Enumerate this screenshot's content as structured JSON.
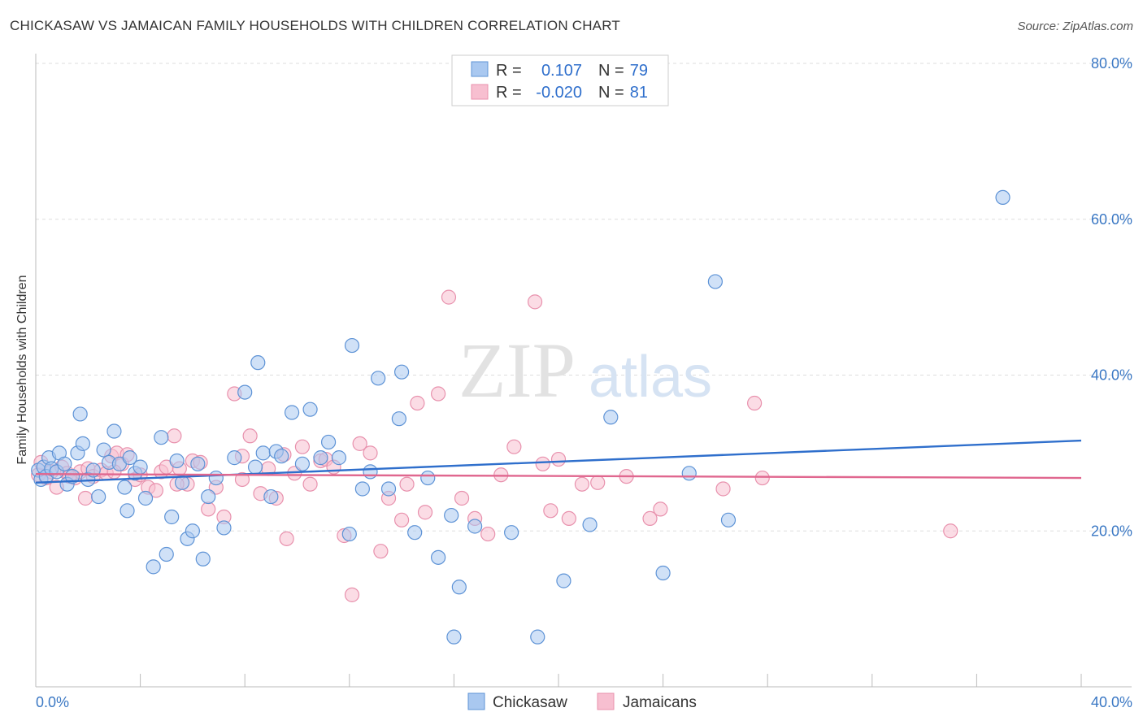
{
  "title": "CHICKASAW VS JAMAICAN FAMILY HOUSEHOLDS WITH CHILDREN CORRELATION CHART",
  "source": "Source: ZipAtlas.com",
  "watermark": {
    "zip": "ZIP",
    "atlas": "atlas"
  },
  "colors": {
    "blue_fill": "#a9c8f0",
    "blue_stroke": "#5e93d6",
    "blue_line": "#2f6fcc",
    "pink_fill": "#f7bfd0",
    "pink_stroke": "#e891ad",
    "pink_line": "#e0678f",
    "tick_text": "#3b78c4",
    "grid": "#dddddd"
  },
  "legend": {
    "r_label": "R =",
    "n_label": "N =",
    "rows": [
      {
        "series": "Chickasaw",
        "r": "0.107",
        "n": "79"
      },
      {
        "series": "Jamaicans",
        "r": "-0.020",
        "n": "81"
      }
    ]
  },
  "chart_data": {
    "type": "scatter",
    "title": "CHICKASAW VS JAMAICAN FAMILY HOUSEHOLDS WITH CHILDREN CORRELATION CHART",
    "xlabel": "",
    "ylabel": "Family Households with Children",
    "xlim": [
      0,
      40
    ],
    "ylim": [
      0,
      80
    ],
    "x_tick_labels": [
      "0.0%",
      "40.0%"
    ],
    "y_ticks": [
      20,
      40,
      60,
      80
    ],
    "y_tick_labels": [
      "20.0%",
      "40.0%",
      "60.0%",
      "80.0%"
    ],
    "grid": true,
    "series": [
      {
        "name": "Chickasaw",
        "r": 0.107,
        "n": 79,
        "trend": {
          "x": [
            0,
            40
          ],
          "y": [
            26.2,
            31.6
          ]
        },
        "points": [
          [
            0.1,
            27.8
          ],
          [
            0.2,
            26.6
          ],
          [
            0.3,
            28.2
          ],
          [
            0.4,
            27.0
          ],
          [
            0.5,
            29.4
          ],
          [
            0.6,
            28.0
          ],
          [
            0.8,
            27.6
          ],
          [
            0.9,
            30.0
          ],
          [
            1.1,
            28.6
          ],
          [
            1.2,
            26.0
          ],
          [
            1.4,
            27.0
          ],
          [
            1.6,
            30.0
          ],
          [
            1.7,
            35.0
          ],
          [
            1.8,
            31.2
          ],
          [
            2.0,
            26.6
          ],
          [
            2.2,
            27.8
          ],
          [
            2.4,
            24.4
          ],
          [
            2.6,
            30.4
          ],
          [
            2.8,
            28.8
          ],
          [
            3.0,
            32.8
          ],
          [
            3.2,
            28.6
          ],
          [
            3.4,
            25.6
          ],
          [
            3.5,
            22.6
          ],
          [
            3.6,
            29.4
          ],
          [
            3.8,
            27.4
          ],
          [
            4.0,
            28.2
          ],
          [
            4.2,
            24.2
          ],
          [
            4.5,
            15.4
          ],
          [
            4.8,
            32.0
          ],
          [
            5.0,
            17.0
          ],
          [
            5.2,
            21.8
          ],
          [
            5.4,
            29.0
          ],
          [
            5.6,
            26.2
          ],
          [
            5.8,
            19.0
          ],
          [
            6.0,
            20.0
          ],
          [
            6.2,
            28.6
          ],
          [
            6.4,
            16.4
          ],
          [
            6.6,
            24.4
          ],
          [
            6.9,
            26.8
          ],
          [
            7.2,
            20.4
          ],
          [
            7.6,
            29.4
          ],
          [
            8.0,
            37.8
          ],
          [
            8.4,
            28.2
          ],
          [
            8.7,
            30.0
          ],
          [
            9.0,
            24.4
          ],
          [
            9.2,
            30.2
          ],
          [
            9.4,
            29.6
          ],
          [
            9.8,
            35.2
          ],
          [
            10.2,
            28.6
          ],
          [
            10.5,
            35.6
          ],
          [
            10.9,
            29.4
          ],
          [
            11.2,
            31.4
          ],
          [
            11.6,
            29.4
          ],
          [
            12.0,
            19.6
          ],
          [
            12.1,
            43.8
          ],
          [
            12.5,
            25.4
          ],
          [
            12.8,
            27.6
          ],
          [
            13.1,
            39.6
          ],
          [
            13.5,
            25.4
          ],
          [
            13.9,
            34.4
          ],
          [
            14.0,
            40.4
          ],
          [
            14.5,
            19.8
          ],
          [
            15.0,
            26.8
          ],
          [
            15.4,
            16.6
          ],
          [
            15.9,
            22.0
          ],
          [
            16.0,
            6.4
          ],
          [
            16.2,
            12.8
          ],
          [
            16.8,
            20.6
          ],
          [
            18.2,
            19.8
          ],
          [
            19.2,
            6.4
          ],
          [
            20.2,
            13.6
          ],
          [
            21.2,
            20.8
          ],
          [
            22.0,
            34.6
          ],
          [
            24.0,
            14.6
          ],
          [
            25.0,
            27.4
          ],
          [
            26.0,
            52.0
          ],
          [
            26.5,
            21.4
          ],
          [
            37.0,
            62.8
          ],
          [
            8.5,
            41.6
          ]
        ]
      },
      {
        "name": "Jamaicans",
        "r": -0.02,
        "n": 81,
        "trend": {
          "x": [
            0,
            40
          ],
          "y": [
            27.3,
            26.8
          ]
        },
        "points": [
          [
            0.1,
            27.2
          ],
          [
            0.2,
            28.8
          ],
          [
            0.4,
            26.8
          ],
          [
            0.6,
            27.6
          ],
          [
            0.8,
            25.6
          ],
          [
            1.0,
            28.2
          ],
          [
            1.2,
            27.4
          ],
          [
            1.5,
            26.8
          ],
          [
            1.7,
            27.6
          ],
          [
            1.9,
            24.2
          ],
          [
            2.0,
            28.0
          ],
          [
            2.2,
            27.0
          ],
          [
            2.5,
            27.8
          ],
          [
            2.7,
            27.4
          ],
          [
            2.9,
            29.6
          ],
          [
            3.1,
            30.0
          ],
          [
            3.3,
            28.6
          ],
          [
            3.5,
            29.8
          ],
          [
            3.8,
            26.6
          ],
          [
            4.0,
            27.2
          ],
          [
            4.3,
            25.6
          ],
          [
            4.6,
            25.2
          ],
          [
            4.8,
            27.6
          ],
          [
            5.0,
            28.2
          ],
          [
            5.3,
            32.2
          ],
          [
            5.5,
            28.0
          ],
          [
            5.8,
            26.0
          ],
          [
            6.0,
            29.0
          ],
          [
            6.3,
            28.8
          ],
          [
            6.6,
            22.8
          ],
          [
            6.9,
            25.6
          ],
          [
            7.2,
            21.8
          ],
          [
            7.6,
            37.6
          ],
          [
            7.9,
            26.6
          ],
          [
            8.2,
            32.2
          ],
          [
            8.6,
            24.8
          ],
          [
            8.9,
            28.0
          ],
          [
            9.2,
            24.2
          ],
          [
            9.6,
            19.0
          ],
          [
            9.9,
            27.4
          ],
          [
            10.2,
            30.8
          ],
          [
            10.5,
            26.0
          ],
          [
            10.9,
            29.0
          ],
          [
            11.1,
            29.2
          ],
          [
            11.4,
            28.2
          ],
          [
            11.8,
            19.4
          ],
          [
            12.1,
            11.8
          ],
          [
            12.4,
            31.2
          ],
          [
            12.8,
            30.0
          ],
          [
            13.2,
            17.4
          ],
          [
            13.5,
            24.2
          ],
          [
            14.0,
            21.4
          ],
          [
            14.2,
            26.0
          ],
          [
            14.6,
            36.4
          ],
          [
            14.9,
            22.4
          ],
          [
            15.4,
            37.6
          ],
          [
            15.8,
            50.0
          ],
          [
            16.3,
            24.2
          ],
          [
            16.8,
            21.6
          ],
          [
            17.3,
            19.6
          ],
          [
            17.8,
            27.2
          ],
          [
            18.3,
            30.8
          ],
          [
            19.1,
            49.4
          ],
          [
            19.4,
            28.6
          ],
          [
            19.7,
            22.6
          ],
          [
            20.0,
            29.2
          ],
          [
            20.4,
            21.6
          ],
          [
            20.9,
            26.0
          ],
          [
            21.5,
            26.2
          ],
          [
            22.6,
            27.0
          ],
          [
            23.5,
            21.6
          ],
          [
            23.9,
            22.8
          ],
          [
            26.3,
            25.4
          ],
          [
            27.5,
            36.4
          ],
          [
            27.8,
            26.8
          ],
          [
            35.0,
            20.0
          ],
          [
            7.9,
            29.6
          ],
          [
            3.0,
            27.6
          ],
          [
            1.3,
            27.0
          ],
          [
            9.5,
            29.8
          ],
          [
            5.4,
            26.0
          ]
        ]
      }
    ],
    "bottom_legend": [
      "Chickasaw",
      "Jamaicans"
    ]
  }
}
